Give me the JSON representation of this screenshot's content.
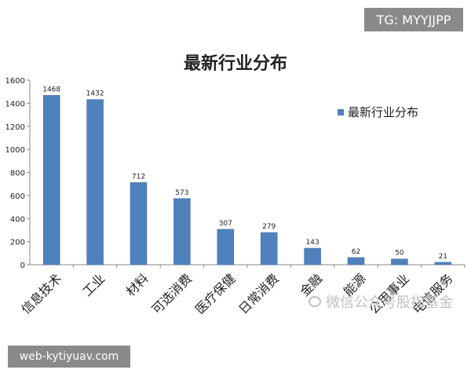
{
  "badges": {
    "tag": "TG: MYYJJPP",
    "url": "web-kytiyuav.com"
  },
  "watermark": {
    "text": "微信公众号股指基金"
  },
  "chart_data": {
    "type": "bar",
    "title": "最新行业分布",
    "categories": [
      "信息技术",
      "工业",
      "材料",
      "可选消费",
      "医疗保健",
      "日常消费",
      "金融",
      "能源",
      "公用事业",
      "电信服务"
    ],
    "series": [
      {
        "name": "最新行业分布",
        "values": [
          1468,
          1432,
          712,
          573,
          307,
          279,
          143,
          62,
          50,
          21
        ],
        "color": "#4f81bd"
      }
    ],
    "yticks": [
      "0",
      "200",
      "400",
      "600",
      "800",
      "1000",
      "1200",
      "1400",
      "1600"
    ],
    "ylim": [
      0,
      1600
    ],
    "xlabel": "",
    "ylabel": "",
    "grid": false,
    "legend_position": "right",
    "data_labels": true
  }
}
